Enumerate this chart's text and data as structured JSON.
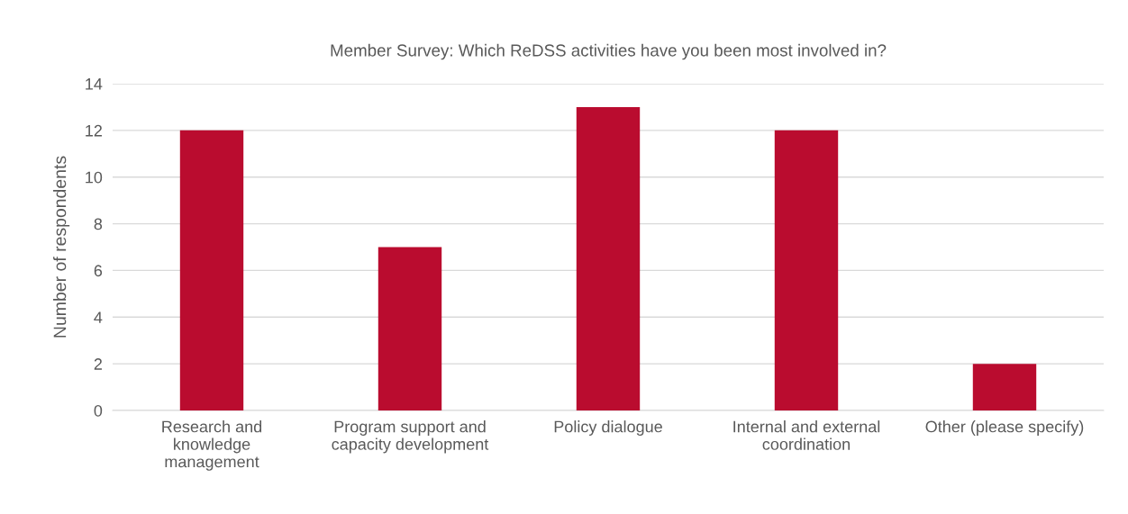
{
  "chart_data": {
    "type": "bar",
    "title": "Member Survey: Which ReDSS activities have you been most involved in?",
    "ylabel": "Number of respondents",
    "categories": [
      "Research and\nknowledge\nmanagement",
      "Program support and\ncapacity development",
      "Policy dialogue",
      "Internal and external\ncoordination",
      "Other (please specify)"
    ],
    "values": [
      12,
      7,
      13,
      12,
      2
    ],
    "color": "#ba0c2f",
    "ylim": [
      0,
      14
    ],
    "yticks": [
      0,
      2,
      4,
      6,
      8,
      10,
      12,
      14
    ],
    "grid": "y",
    "legend": false
  }
}
